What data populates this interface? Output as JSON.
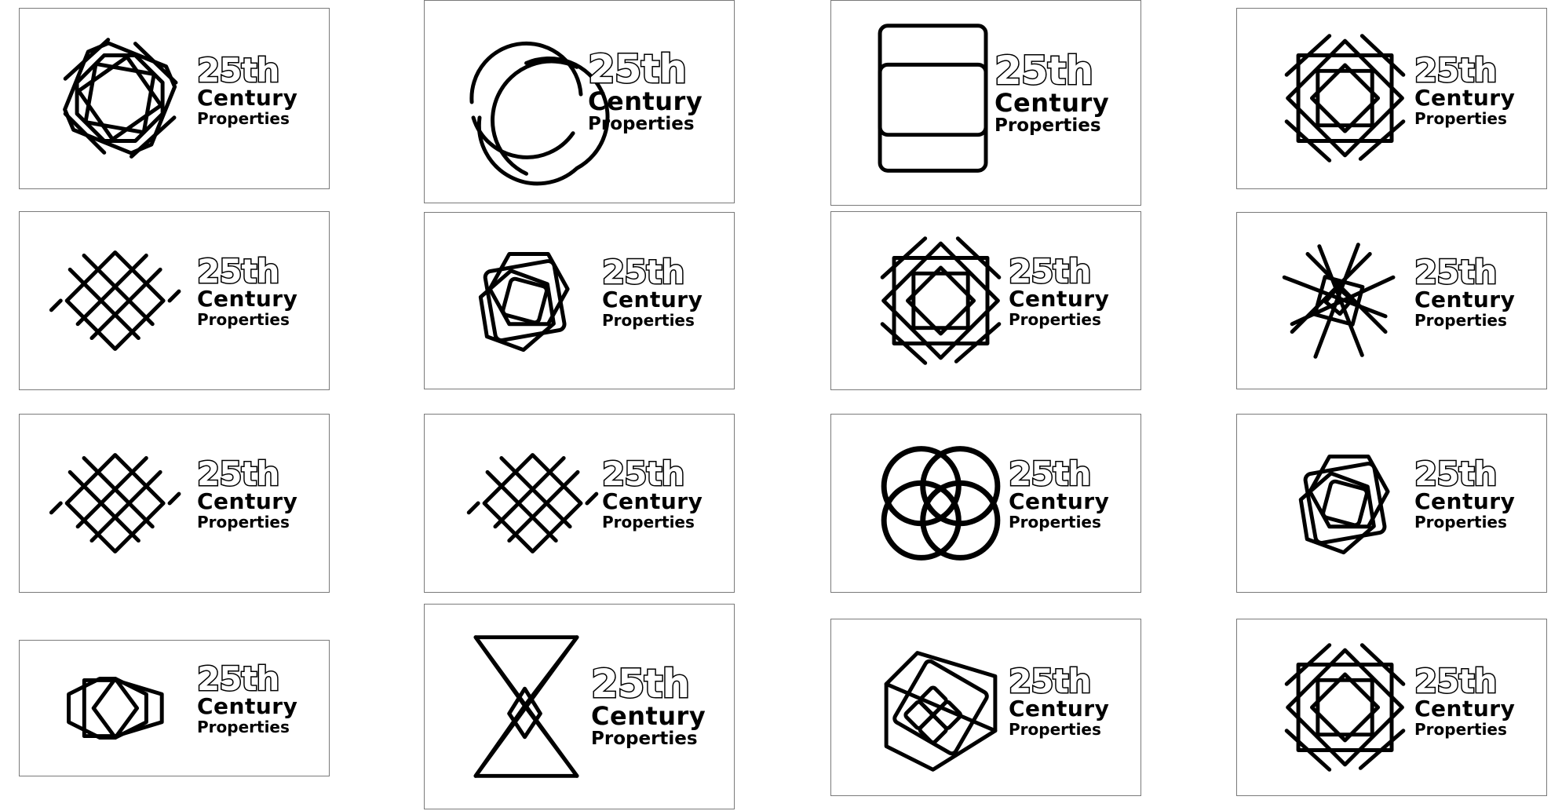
{
  "logo_wordmark": {
    "line1": "25th",
    "line2": "Century",
    "line3": "Properties"
  },
  "logos": [
    {
      "icon": "interlaced-star-octagon-icon"
    },
    {
      "icon": "overlapping-circles-icon"
    },
    {
      "icon": "stacked-rounded-rectangles-icon"
    },
    {
      "icon": "woven-square-star-icon"
    },
    {
      "icon": "lattice-diamond-icon"
    },
    {
      "icon": "overlapping-hexagons-icon"
    },
    {
      "icon": "woven-square-star-icon"
    },
    {
      "icon": "pinwheel-star-icon"
    },
    {
      "icon": "lattice-diamond-icon"
    },
    {
      "icon": "lattice-diamond-icon"
    },
    {
      "icon": "four-circle-knot-icon"
    },
    {
      "icon": "overlapping-hexagons-icon"
    },
    {
      "icon": "hexagon-diamond-icon"
    },
    {
      "icon": "hourglass-triangles-icon"
    },
    {
      "icon": "rotated-square-cluster-icon"
    },
    {
      "icon": "woven-square-star-icon"
    }
  ],
  "colors": {
    "ink": "#000000",
    "card_border": "#7a7a7a",
    "background": "#ffffff"
  }
}
